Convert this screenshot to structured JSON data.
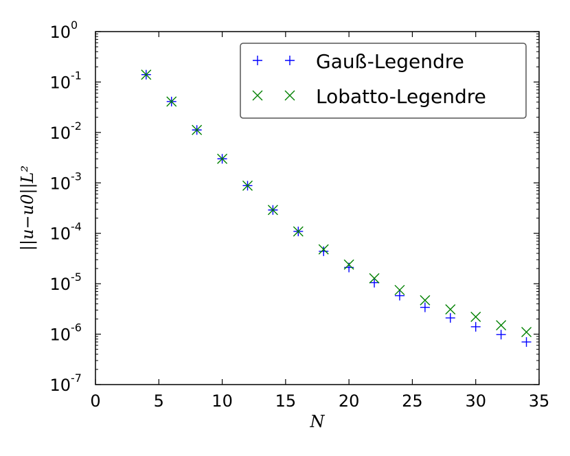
{
  "chart_data": {
    "type": "scatter",
    "title": "",
    "xlabel": "N",
    "ylabel": "||u−u0||L²",
    "xlim": [
      0,
      35
    ],
    "ylim": [
      1e-07,
      1
    ],
    "yscale": "log",
    "grid": false,
    "legend_position": "top-right",
    "x_ticks": [
      "0",
      "5",
      "10",
      "15",
      "20",
      "25",
      "30",
      "35"
    ],
    "y_ticks": [
      {
        "base": "10",
        "exp": "-7"
      },
      {
        "base": "10",
        "exp": "-6"
      },
      {
        "base": "10",
        "exp": "-5"
      },
      {
        "base": "10",
        "exp": "-4"
      },
      {
        "base": "10",
        "exp": "-3"
      },
      {
        "base": "10",
        "exp": "-2"
      },
      {
        "base": "10",
        "exp": "-1"
      },
      {
        "base": "10",
        "exp": "0"
      }
    ],
    "series": [
      {
        "name": "Gauß-Legendre",
        "marker": "+",
        "color": "#0000ff",
        "x": [
          4,
          6,
          8,
          10,
          12,
          14,
          16,
          18,
          20,
          22,
          24,
          26,
          28,
          30,
          32,
          34
        ],
        "y": [
          0.14,
          0.041,
          0.0112,
          0.003,
          0.00088,
          0.00029,
          0.000109,
          4.4e-05,
          2.1e-05,
          1.05e-05,
          5.8e-06,
          3.4e-06,
          2.1e-06,
          1.4e-06,
          9.8e-07,
          7e-07
        ]
      },
      {
        "name": "Lobatto-Legendre",
        "marker": "x",
        "color": "#008000",
        "x": [
          4,
          6,
          8,
          10,
          12,
          14,
          16,
          18,
          20,
          22,
          24,
          26,
          28,
          30,
          32,
          34
        ],
        "y": [
          0.14,
          0.041,
          0.0112,
          0.003,
          0.00088,
          0.00029,
          0.000109,
          4.8e-05,
          2.4e-05,
          1.28e-05,
          7.5e-06,
          4.7e-06,
          3.1e-06,
          2.2e-06,
          1.5e-06,
          1.1e-06
        ]
      }
    ]
  }
}
